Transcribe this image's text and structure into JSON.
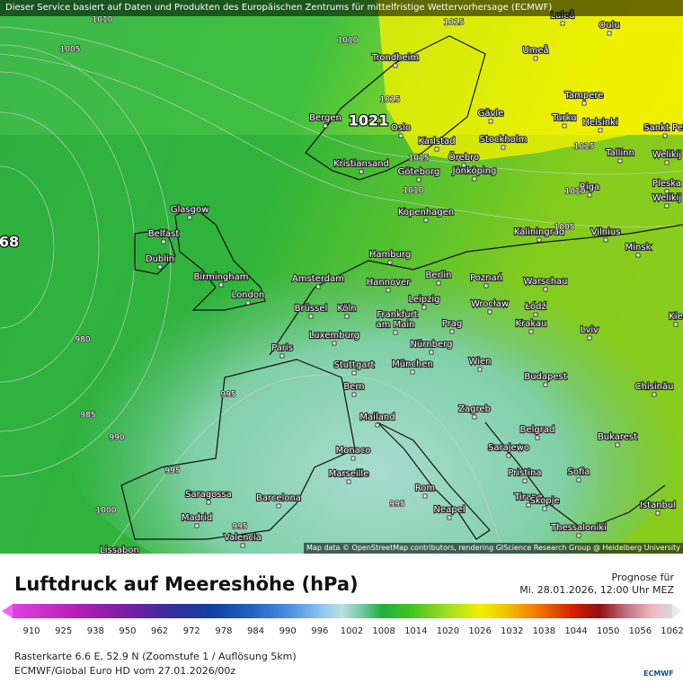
{
  "header": {
    "notice": "Dieser Service basiert auf Daten und Produkten des Europäischen Zentrums für mittelfristige Wettervorhersage (ECMWF)"
  },
  "map": {
    "cities": [
      "Luleå",
      "Oulu",
      "Umeå",
      "Trondheim",
      "Tampere",
      "Gävle",
      "Turku",
      "Helsinki",
      "Sankt Pet",
      "Bergen",
      "Oslo",
      "Karlstad",
      "Stockholm",
      "Örebro",
      "Tallinn",
      "Welikij",
      "Kristiansand",
      "Göteborg",
      "Jönköping",
      "Riga",
      "Pleska",
      "Welikij",
      "Glasgow",
      "Kopenhagen",
      "Kaliningrad",
      "Vilnius",
      "Belfast",
      "Minsk",
      "Dublin",
      "Hamburg",
      "Birmingham",
      "Amsterdam",
      "Berlin",
      "Poznań",
      "Warschau",
      "London",
      "Hannover",
      "Leipzig",
      "Wrocław",
      "Łódź",
      "Brüssel",
      "Köln",
      "Frankfurt",
      "am Main",
      "Prag",
      "Krakau",
      "Kie",
      "Luxemburg",
      "Lviv",
      "Paris",
      "Nürnberg",
      "Stuttgart",
      "München",
      "Wien",
      "Budapest",
      "Chisinău",
      "Bern",
      "Zagreb",
      "Mailand",
      "Belgrad",
      "Bukarest",
      "Sarajewo",
      "Monaco",
      "Marseille",
      "Pristina",
      "Sofia",
      "Rom",
      "Tirane",
      "Skopje",
      "Saragossa",
      "Barcelona",
      "Neapel",
      "Istanbul",
      "Madrid",
      "Thessaloniki",
      "Valencia",
      "Lissabon"
    ],
    "isobar_labels": [
      "1010",
      "1005",
      "1010",
      "1015",
      "1015",
      "1015",
      "1010",
      "1015",
      "1010",
      "1005",
      "980",
      "985",
      "990",
      "995",
      "995",
      "1000",
      "995",
      "995"
    ],
    "center_labels": [
      "1021",
      "68"
    ],
    "attribution": "Map data © OpenStreetMap contributors, rendering GIScience Research Group @ Heidelberg University"
  },
  "legend": {
    "title": "Luftdruck auf Meereshöhe (hPa)",
    "forecast_label": "Prognose für",
    "forecast_time": "Mi. 28.01.2026, 12:00 Uhr MEZ",
    "values": [
      910,
      925,
      938,
      950,
      962,
      972,
      978,
      984,
      990,
      996,
      1002,
      1008,
      1014,
      1020,
      1026,
      1032,
      1038,
      1044,
      1050,
      1056,
      1062
    ]
  },
  "footer": {
    "line1": "Rasterkarte 6.6 E, 52.9 N (Zoomstufe 1 / Auflösung 5km)",
    "line2": "ECMWF/Global Euro HD vom 27.01.2026/00z",
    "logo": "ECMWF"
  }
}
